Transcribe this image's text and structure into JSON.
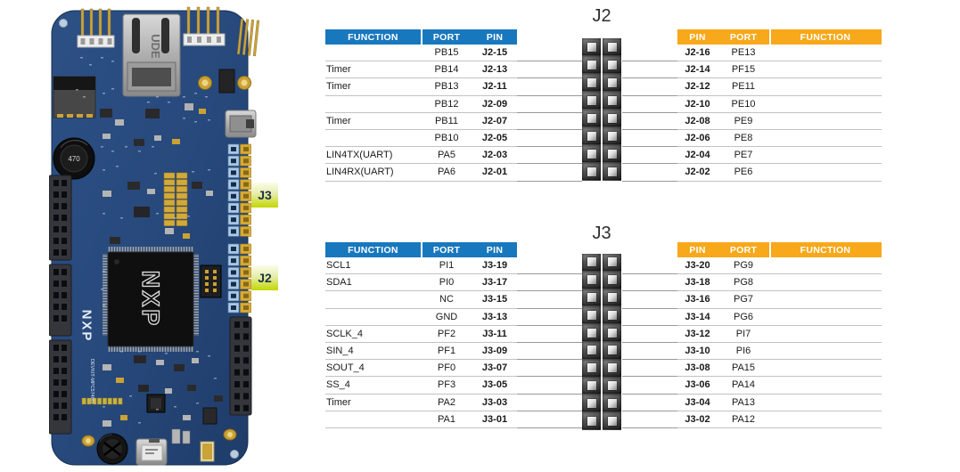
{
  "board": {
    "chip_logo": "NXP",
    "silkscreen_logo": "NXP",
    "silkscreen_model": "DEVKIT-MPC5748G",
    "inductor_label": "470",
    "ethernet_label": "UDE",
    "callouts": [
      {
        "id": "J3",
        "label": "J3"
      },
      {
        "id": "J2",
        "label": "J2"
      }
    ]
  },
  "colors": {
    "header_blue": "#1878BE",
    "header_orange": "#F7A81B",
    "callout_green": "#C3D600"
  },
  "sections": [
    {
      "id": "J2",
      "title": "J2",
      "left_header": [
        "FUNCTION",
        "PORT",
        "PIN"
      ],
      "right_header": [
        "PIN",
        "PORT",
        "FUNCTION"
      ],
      "rows": [
        {
          "left": {
            "function": "",
            "port": "PB15",
            "pin": "J2-15"
          },
          "right": {
            "pin": "J2-16",
            "port": "PE13",
            "function": ""
          }
        },
        {
          "left": {
            "function": "Timer",
            "port": "PB14",
            "pin": "J2-13"
          },
          "right": {
            "pin": "J2-14",
            "port": "PF15",
            "function": ""
          }
        },
        {
          "left": {
            "function": "Timer",
            "port": "PB13",
            "pin": "J2-11"
          },
          "right": {
            "pin": "J2-12",
            "port": "PE11",
            "function": ""
          }
        },
        {
          "left": {
            "function": "",
            "port": "PB12",
            "pin": "J2-09"
          },
          "right": {
            "pin": "J2-10",
            "port": "PE10",
            "function": ""
          }
        },
        {
          "left": {
            "function": "Timer",
            "port": "PB11",
            "pin": "J2-07"
          },
          "right": {
            "pin": "J2-08",
            "port": "PE9",
            "function": ""
          }
        },
        {
          "left": {
            "function": "",
            "port": "PB10",
            "pin": "J2-05"
          },
          "right": {
            "pin": "J2-06",
            "port": "PE8",
            "function": ""
          }
        },
        {
          "left": {
            "function": "LIN4TX(UART)",
            "port": "PA5",
            "pin": "J2-03"
          },
          "right": {
            "pin": "J2-04",
            "port": "PE7",
            "function": ""
          }
        },
        {
          "left": {
            "function": "LIN4RX(UART)",
            "port": "PA6",
            "pin": "J2-01"
          },
          "right": {
            "pin": "J2-02",
            "port": "PE6",
            "function": ""
          }
        }
      ]
    },
    {
      "id": "J3",
      "title": "J3",
      "left_header": [
        "FUNCTION",
        "PORT",
        "PIN"
      ],
      "right_header": [
        "PIN",
        "PORT",
        "FUNCTION"
      ],
      "rows": [
        {
          "left": {
            "function": "SCL1",
            "port": "PI1",
            "pin": "J3-19"
          },
          "right": {
            "pin": "J3-20",
            "port": "PG9",
            "function": ""
          }
        },
        {
          "left": {
            "function": "SDA1",
            "port": "PI0",
            "pin": "J3-17"
          },
          "right": {
            "pin": "J3-18",
            "port": "PG8",
            "function": ""
          }
        },
        {
          "left": {
            "function": "",
            "port": "NC",
            "pin": "J3-15"
          },
          "right": {
            "pin": "J3-16",
            "port": "PG7",
            "function": ""
          }
        },
        {
          "left": {
            "function": "",
            "port": "GND",
            "pin": "J3-13"
          },
          "right": {
            "pin": "J3-14",
            "port": "PG6",
            "function": ""
          }
        },
        {
          "left": {
            "function": "SCLK_4",
            "port": "PF2",
            "pin": "J3-11"
          },
          "right": {
            "pin": "J3-12",
            "port": "PI7",
            "function": ""
          }
        },
        {
          "left": {
            "function": "SIN_4",
            "port": "PF1",
            "pin": "J3-09"
          },
          "right": {
            "pin": "J3-10",
            "port": "PI6",
            "function": ""
          }
        },
        {
          "left": {
            "function": "SOUT_4",
            "port": "PF0",
            "pin": "J3-07"
          },
          "right": {
            "pin": "J3-08",
            "port": "PA15",
            "function": ""
          }
        },
        {
          "left": {
            "function": "SS_4",
            "port": "PF3",
            "pin": "J3-05"
          },
          "right": {
            "pin": "J3-06",
            "port": "PA14",
            "function": ""
          }
        },
        {
          "left": {
            "function": "Timer",
            "port": "PA2",
            "pin": "J3-03"
          },
          "right": {
            "pin": "J3-04",
            "port": "PA13",
            "function": ""
          }
        },
        {
          "left": {
            "function": "",
            "port": "PA1",
            "pin": "J3-01"
          },
          "right": {
            "pin": "J3-02",
            "port": "PA12",
            "function": ""
          }
        }
      ]
    }
  ]
}
